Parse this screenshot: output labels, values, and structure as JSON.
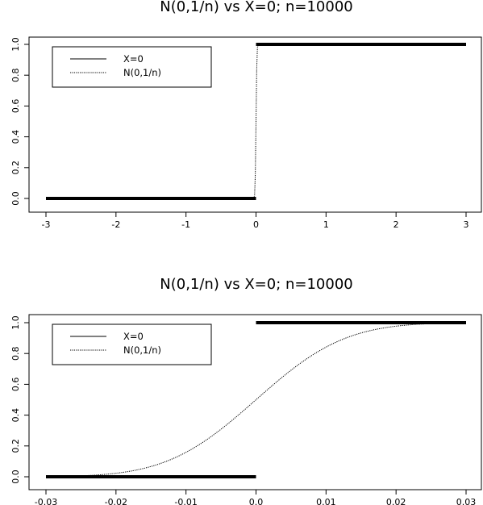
{
  "chart_data": [
    {
      "type": "line",
      "title": "N(0,1/n) vs X=0; n=10000",
      "xlabel": "",
      "ylabel": "",
      "xlim": [
        -3,
        3
      ],
      "ylim": [
        0,
        1
      ],
      "xticks": [
        "-3",
        "-2",
        "-1",
        "0",
        "1",
        "2",
        "3"
      ],
      "xtick_values": [
        -3,
        -2,
        -1,
        0,
        1,
        2,
        3
      ],
      "yticks": [
        "0.0",
        "0.2",
        "0.4",
        "0.6",
        "0.8",
        "1.0"
      ],
      "ytick_values": [
        0,
        0.2,
        0.4,
        0.6,
        0.8,
        1.0
      ],
      "grid": false,
      "legend_position": "top-left",
      "n": 10000,
      "series": [
        {
          "name": "X=0",
          "style": "solid-thick",
          "kind": "step",
          "x_range": [
            -3,
            3
          ],
          "step_at": 0
        },
        {
          "name": "N(0,1/n)",
          "style": "dotted",
          "kind": "normal_cdf",
          "x_range": [
            -3,
            3
          ],
          "mean": 0,
          "sd": 0.01
        }
      ]
    },
    {
      "type": "line",
      "title": "N(0,1/n) vs X=0; n=10000",
      "xlabel": "",
      "ylabel": "",
      "xlim": [
        -0.03,
        0.03
      ],
      "ylim": [
        0,
        1
      ],
      "xticks": [
        "-0.03",
        "-0.02",
        "-0.01",
        "0.0",
        "0.01",
        "0.02",
        "0.03"
      ],
      "xtick_values": [
        -0.03,
        -0.02,
        -0.01,
        0,
        0.01,
        0.02,
        0.03
      ],
      "yticks": [
        "0.0",
        "0.2",
        "0.4",
        "0.6",
        "0.8",
        "1.0"
      ],
      "ytick_values": [
        0,
        0.2,
        0.4,
        0.6,
        0.8,
        1.0
      ],
      "grid": false,
      "legend_position": "top-left",
      "n": 10000,
      "series": [
        {
          "name": "X=0",
          "style": "solid-thick",
          "kind": "step",
          "x_range": [
            -0.03,
            0.03
          ],
          "step_at": 0
        },
        {
          "name": "N(0,1/n)",
          "style": "dotted",
          "kind": "normal_cdf",
          "x_range": [
            -0.03,
            0.03
          ],
          "mean": 0,
          "sd": 0.01
        }
      ]
    }
  ]
}
